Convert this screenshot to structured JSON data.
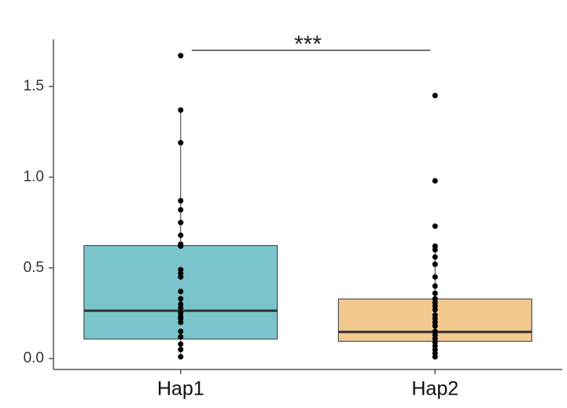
{
  "chart_data": {
    "type": "box",
    "categories": [
      "Hap1",
      "Hap2"
    ],
    "series": [
      {
        "name": "Hap1",
        "color": "#7ac5cc",
        "q1": 0.108,
        "median": 0.264,
        "q3": 0.623,
        "whisker_low": 0.0,
        "whisker_high": 1.37,
        "points": [
          1.67,
          1.37,
          1.19,
          0.87,
          0.82,
          0.75,
          0.68,
          0.63,
          0.62,
          0.49,
          0.47,
          0.45,
          0.37,
          0.33,
          0.3,
          0.28,
          0.25,
          0.23,
          0.22,
          0.2,
          0.15,
          0.12,
          0.08,
          0.05,
          0.01
        ]
      },
      {
        "name": "Hap2",
        "color": "#f2c98f",
        "q1": 0.095,
        "median": 0.147,
        "q3": 0.329,
        "whisker_low": 0.0,
        "whisker_high": 0.62,
        "points": [
          1.45,
          0.98,
          0.73,
          0.62,
          0.6,
          0.56,
          0.52,
          0.45,
          0.4,
          0.36,
          0.33,
          0.31,
          0.29,
          0.27,
          0.24,
          0.22,
          0.2,
          0.18,
          0.15,
          0.13,
          0.11,
          0.09,
          0.07,
          0.05,
          0.03,
          0.01
        ]
      }
    ],
    "ylim": [
      -0.06,
      1.76
    ],
    "yticks": [
      {
        "value": 0,
        "label": "0.0"
      },
      1.5,
      {
        "value": 0.5,
        "label": "0.5"
      },
      {
        "value": 1,
        "label": "1.0"
      }
    ],
    "annotation": "***"
  }
}
